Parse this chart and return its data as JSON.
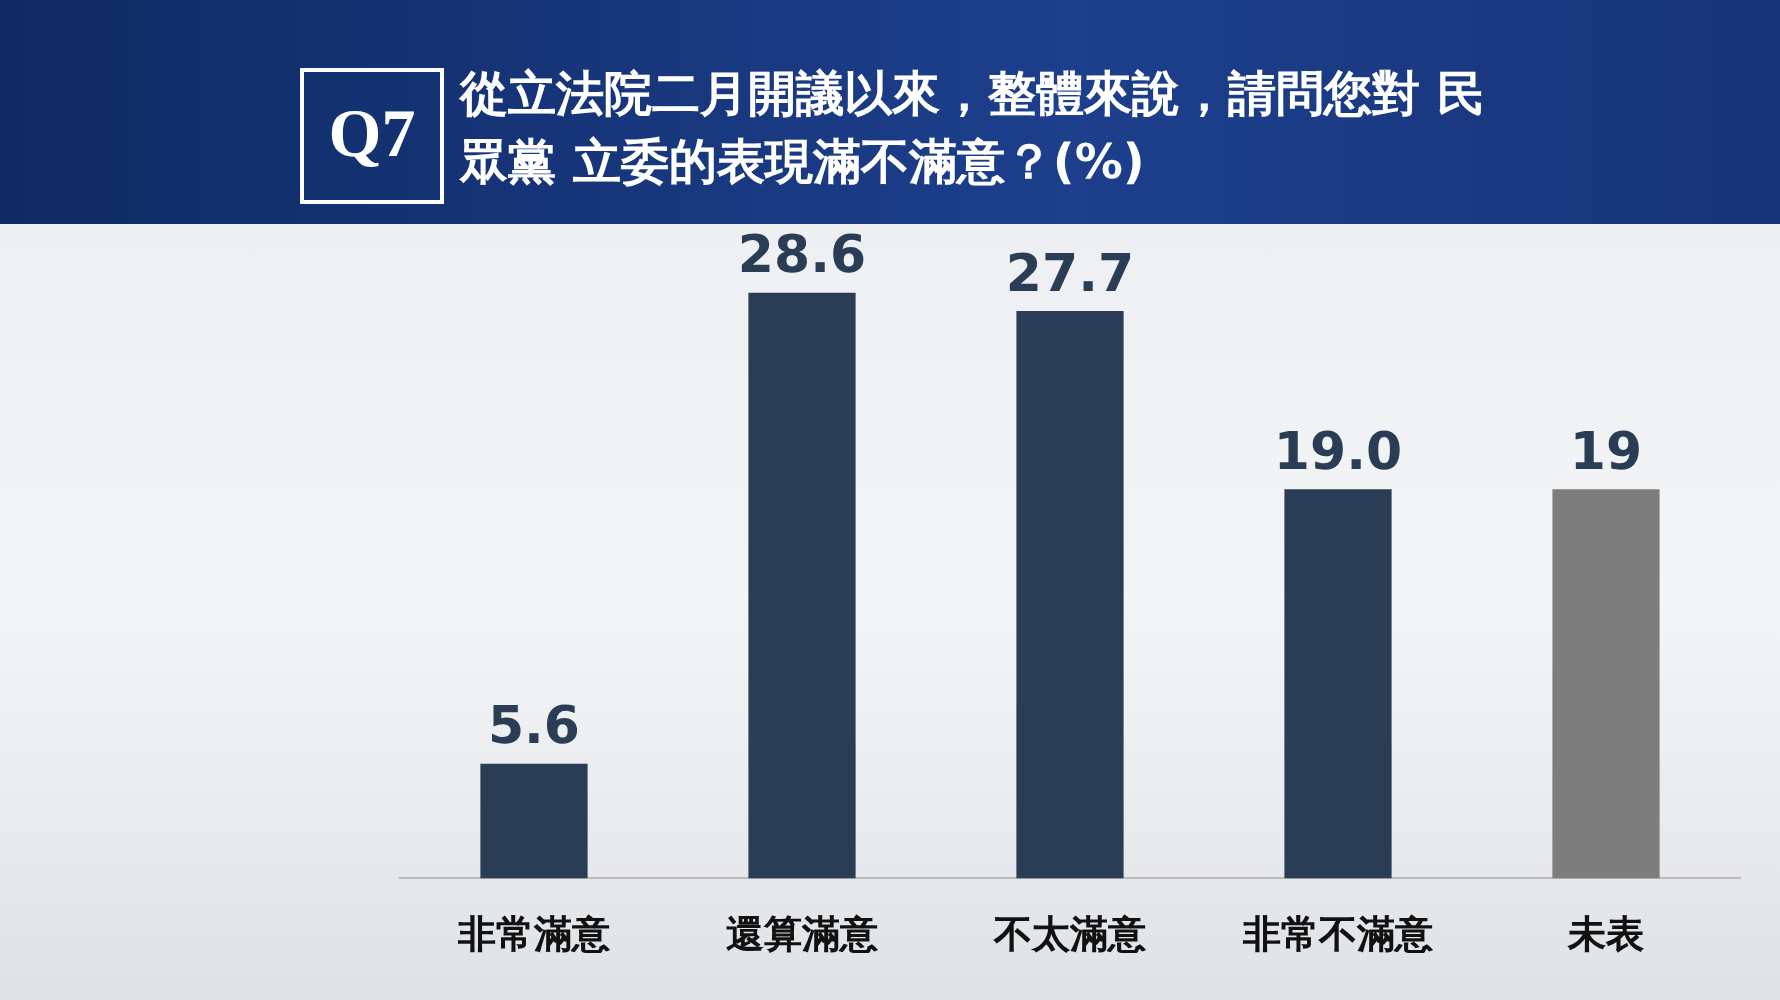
{
  "chart_data": {
    "type": "bar",
    "title": "從立法院二月開議以來，整體來說，請問您對 民眾黨 立委的表現滿不滿意？(%)",
    "annotations": [
      "Q7"
    ],
    "categories": [
      "非常滿意",
      "還算滿意",
      "不太滿意",
      "非常不滿意",
      "未表"
    ],
    "values": [
      5.6,
      28.6,
      27.7,
      19.0,
      19.0
    ],
    "value_labels": [
      "5.6",
      "28.6",
      "27.7",
      "19.0",
      "19"
    ],
    "colors": [
      "#2b3d55",
      "#2b3d55",
      "#2b3d55",
      "#2b3d55",
      "#7d7d7d"
    ],
    "grid": false,
    "legend": false
  }
}
